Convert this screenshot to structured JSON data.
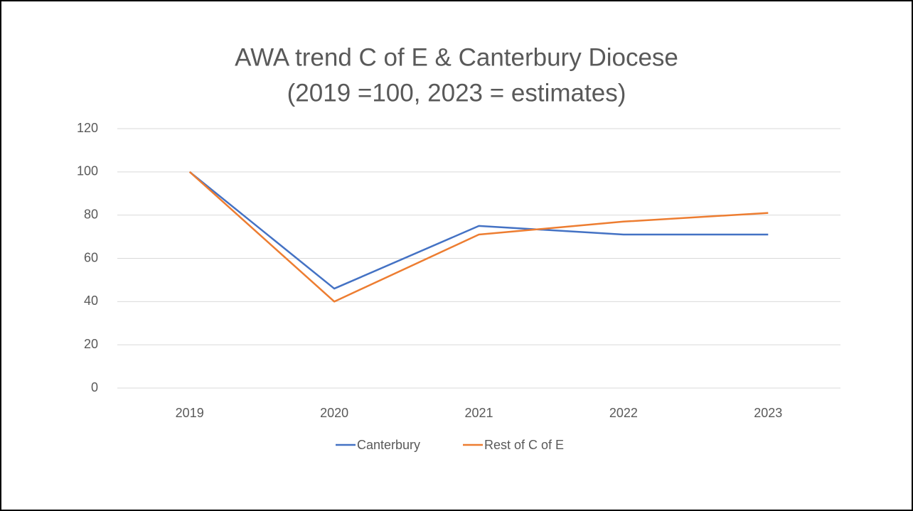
{
  "chart_data": {
    "type": "line",
    "title": [
      "AWA trend C of E & Canterbury Diocese",
      "(2019 =100, 2023 = estimates)"
    ],
    "categories": [
      "2019",
      "2020",
      "2021",
      "2022",
      "2023"
    ],
    "series": [
      {
        "name": "Canterbury",
        "color": "#4472c4",
        "values": [
          100,
          46,
          75,
          71,
          71
        ]
      },
      {
        "name": "Rest of C of E",
        "color": "#ed7d31",
        "values": [
          100,
          40,
          71,
          77,
          81
        ]
      }
    ],
    "ylim": [
      0,
      120
    ],
    "yticks": [
      0,
      20,
      40,
      60,
      80,
      100,
      120
    ],
    "grid": true,
    "legend": "bottom"
  }
}
